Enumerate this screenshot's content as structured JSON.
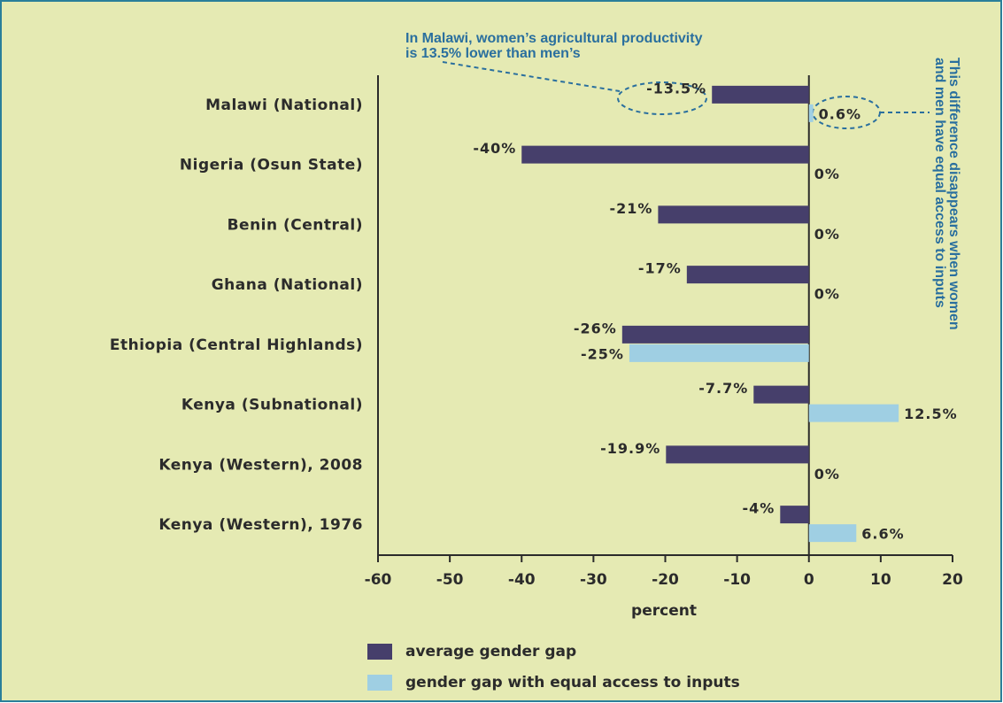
{
  "chart_data": {
    "type": "barh",
    "categories": [
      "Malawi (National)",
      "Nigeria (Osun State)",
      "Benin (Central)",
      "Ghana (National)",
      "Ethiopia (Central Highlands)",
      "Kenya (Subnational)",
      "Kenya (Western), 2008",
      "Kenya (Western), 1976"
    ],
    "series": [
      {
        "name": "average gender gap",
        "color": "#463f6b",
        "values": [
          -13.5,
          -40,
          -21,
          -17,
          -26,
          -7.7,
          -19.9,
          -4
        ],
        "value_labels": [
          "-13.5%",
          "-40%",
          "-21%",
          "-17%",
          "-26%",
          "-7.7%",
          "-19.9%",
          "-4%"
        ]
      },
      {
        "name": "gender gap with equal access to inputs",
        "color": "#9fcfe3",
        "values": [
          0.6,
          0,
          0,
          0,
          -25,
          12.5,
          0,
          6.6
        ],
        "value_labels": [
          "0.6%",
          "0%",
          "0%",
          "0%",
          "-25%",
          "12.5%",
          "0%",
          "6.6%"
        ]
      }
    ],
    "xlim": [
      -60,
      20
    ],
    "xticks": [
      -60,
      -50,
      -40,
      -30,
      -20,
      -10,
      0,
      10,
      20
    ],
    "xlabel": "percent",
    "legend": "bottom-left",
    "annotations": {
      "top": [
        "In Malawi, women’s agricultural productivity",
        "is 13.5% lower than men’s"
      ],
      "right": [
        "This difference disappears when women",
        "and men have equal access to inputs"
      ]
    }
  }
}
